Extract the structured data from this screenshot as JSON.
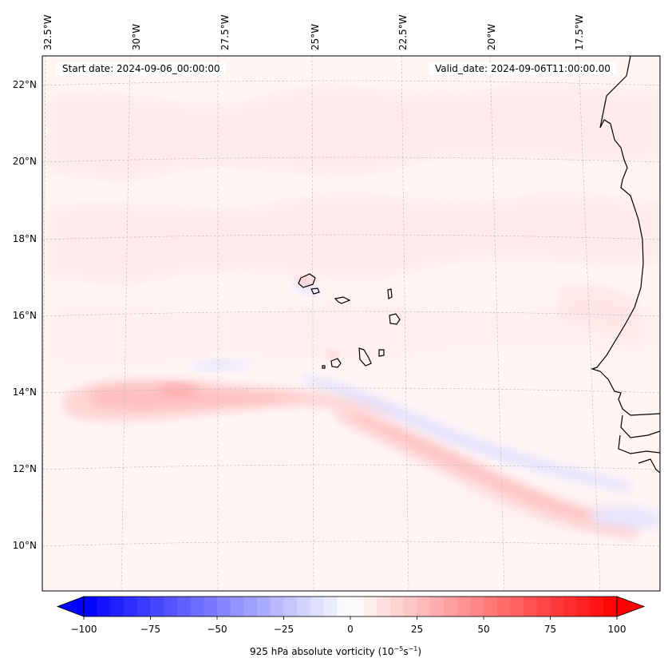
{
  "map": {
    "start_date_label": "Start date: 2024-09-06_00:00:00",
    "valid_date_label": "Valid_date: 2024-09-06T11:00:00.00",
    "projection_hint": "conic",
    "extent": {
      "lon_min": -33.0,
      "lon_max": -16.0,
      "lat_min": 9.0,
      "lat_max": 23.0
    },
    "gridlines": true,
    "coastlines": [
      "Cape Verde islands",
      "West African coast (Mauritania, Senegal, Gambia, Guinea-Bissau)"
    ],
    "lon_ticks": [
      "32.5°W",
      "30°W",
      "27.5°W",
      "25°W",
      "22.5°W",
      "20°W",
      "17.5°W"
    ],
    "lat_ticks": [
      "22°N",
      "20°N",
      "18°N",
      "16°N",
      "14°N",
      "12°N",
      "10°N"
    ],
    "field": "925 hPa absolute vorticity",
    "features": [
      {
        "name": "positive vorticity band",
        "description": "zonal band near 13.5-14°N from ~32°W to ~24°W, peak ~20-25",
        "peak_value": 25
      },
      {
        "name": "positive vorticity streak",
        "description": "WNW-ESE streak from ~24°W,14°N to ~17°W,10.5°N",
        "peak_value": 20
      },
      {
        "name": "negative vorticity streak",
        "description": "weak negative streak from ~24°W,14.5°N to ~16.5°W,11.5°N",
        "peak_value": -10
      }
    ]
  },
  "chart_data": {
    "type": "heatmap",
    "title": "",
    "colorbar": {
      "label_main": "925 hPa absolute vorticity (10",
      "label_exp1": "−5",
      "label_mid": "s",
      "label_exp2": "−1",
      "label_end": ")",
      "vmin": -100,
      "vmax": 100,
      "step": 5,
      "extend": "both",
      "colormap": "bwr",
      "ticks": [
        -100,
        -75,
        -50,
        -25,
        0,
        25,
        50,
        75,
        100
      ],
      "tick_labels": [
        "−100",
        "−75",
        "−50",
        "−25",
        "0",
        "25",
        "50",
        "75",
        "100"
      ],
      "low_color": "#0000ff",
      "mid_color": "#ffffff",
      "high_color": "#ff0000"
    },
    "xlabel": "",
    "ylabel": ""
  }
}
